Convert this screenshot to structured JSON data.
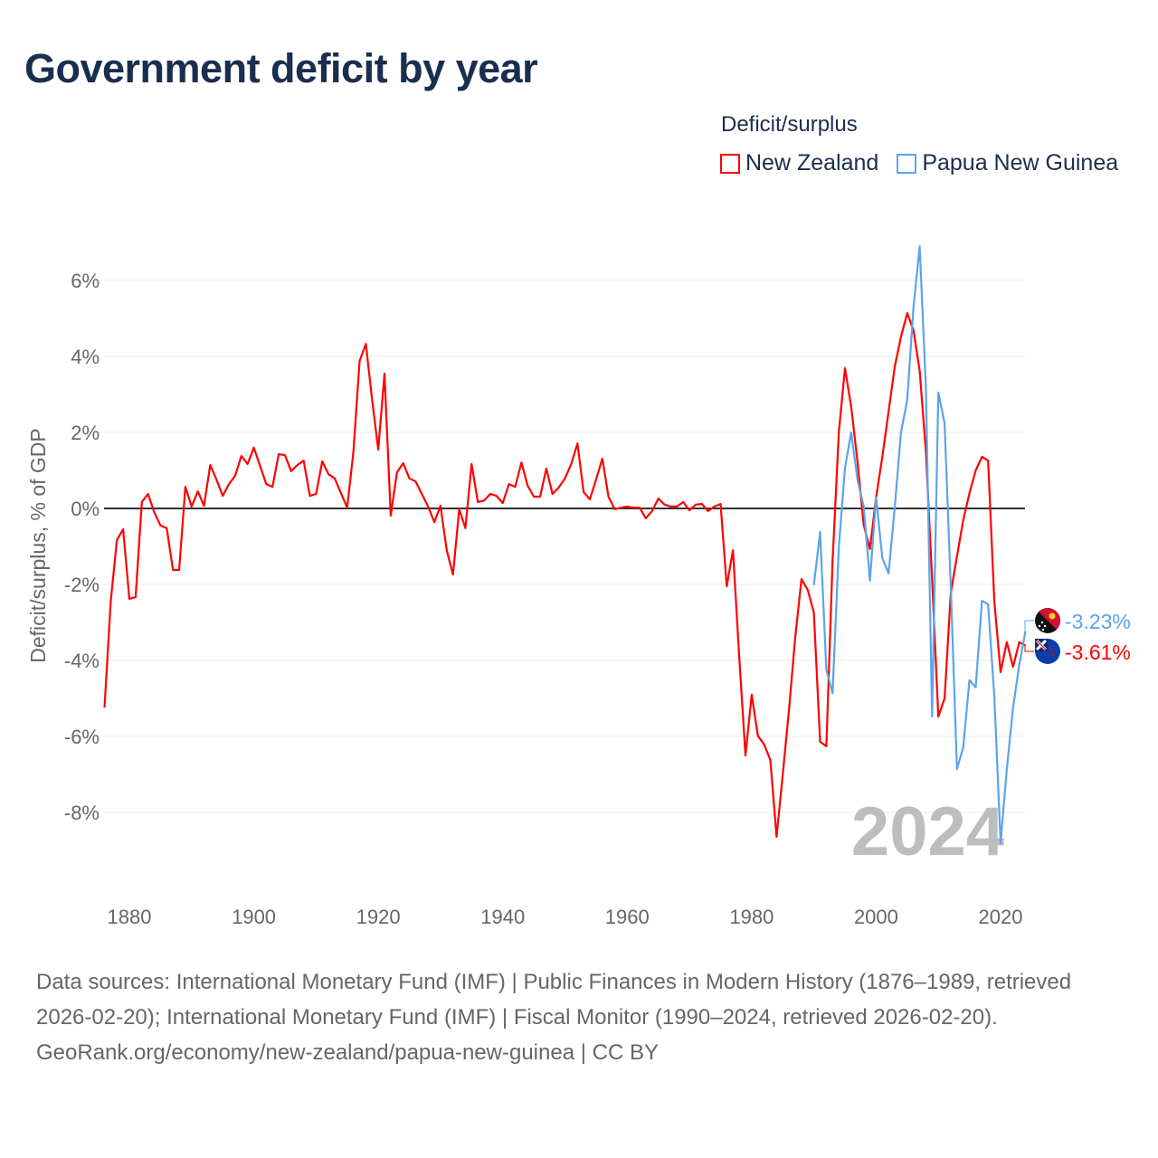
{
  "title": "Government deficit by year",
  "legend": {
    "title": "Deficit/surplus",
    "items": [
      {
        "name": "New Zealand",
        "color": "#ff0000"
      },
      {
        "name": "Papua New Guinea",
        "color": "#5ba4ea"
      }
    ]
  },
  "chart_data": {
    "type": "line",
    "title": "Government deficit by year",
    "xlabel": "",
    "ylabel": "Deficit/surplus, % of GDP",
    "xlim": [
      1876,
      2024
    ],
    "ylim": [
      -9.9,
      7.2
    ],
    "x_ticks": [
      1880,
      1900,
      1920,
      1940,
      1960,
      1980,
      2000,
      2020
    ],
    "y_ticks": [
      -8,
      -6,
      -4,
      -2,
      0,
      2,
      4,
      6
    ],
    "y_tick_labels": [
      "-8%",
      "-6%",
      "-4%",
      "-2%",
      "0%",
      "2%",
      "4%",
      "6%"
    ],
    "grid": true,
    "legend_position": "top-right",
    "year_watermark": "2024",
    "series": [
      {
        "name": "New Zealand",
        "color": "#ff0000",
        "start_year": 1876,
        "end_label": "-3.61%",
        "values": [
          -5.24,
          -2.45,
          -0.83,
          -0.55,
          -2.38,
          -2.33,
          0.17,
          0.38,
          -0.1,
          -0.45,
          -0.52,
          -1.62,
          -1.62,
          0.57,
          0.05,
          0.45,
          0.07,
          1.14,
          0.76,
          0.33,
          0.64,
          0.86,
          1.38,
          1.17,
          1.6,
          1.12,
          0.64,
          0.57,
          1.43,
          1.4,
          0.98,
          1.14,
          1.26,
          0.33,
          0.38,
          1.24,
          0.9,
          0.79,
          0.4,
          0.02,
          1.48,
          3.88,
          4.33,
          2.86,
          1.55,
          3.55,
          -0.19,
          0.95,
          1.19,
          0.79,
          0.71,
          0.38,
          0.05,
          -0.36,
          0.07,
          -1.1,
          -1.74,
          -0.02,
          -0.52,
          1.17,
          0.17,
          0.21,
          0.38,
          0.33,
          0.14,
          0.64,
          0.57,
          1.21,
          0.6,
          0.31,
          0.31,
          1.05,
          0.38,
          0.55,
          0.79,
          1.17,
          1.71,
          0.43,
          0.24,
          0.76,
          1.31,
          0.31,
          -0.02,
          0.02,
          0.05,
          0.02,
          0.02,
          -0.26,
          -0.07,
          0.26,
          0.1,
          0.05,
          0.05,
          0.17,
          -0.05,
          0.1,
          0.12,
          -0.07,
          0.05,
          0.12,
          -2.05,
          -1.1,
          -3.9,
          -6.5,
          -4.9,
          -5.98,
          -6.21,
          -6.62,
          -8.64,
          -6.98,
          -5.31,
          -3.4,
          -1.86,
          -2.14,
          -2.74,
          -6.14,
          -6.26,
          -1.38,
          2.0,
          3.69,
          2.67,
          1.24,
          -0.43,
          -1.07,
          0.29,
          1.36,
          2.55,
          3.74,
          4.52,
          5.14,
          4.69,
          3.62,
          1.48,
          -1.86,
          -5.48,
          -5.0,
          -2.21,
          -1.26,
          -0.31,
          0.4,
          1.0,
          1.36,
          1.26,
          -2.45,
          -4.31,
          -3.52,
          -4.17,
          -3.52,
          -3.61
        ]
      },
      {
        "name": "Papua New Guinea",
        "color": "#5ba4ea",
        "start_year": 1990,
        "end_label": "-3.23%",
        "values": [
          -2.02,
          -0.62,
          -4.24,
          -4.86,
          -1.02,
          1.07,
          2.0,
          0.76,
          0.05,
          -1.9,
          0.29,
          -1.31,
          -1.71,
          0.05,
          2.0,
          2.86,
          5.29,
          6.9,
          3.14,
          -5.48,
          3.05,
          2.24,
          -2.1,
          -6.86,
          -6.29,
          -4.52,
          -4.71,
          -2.43,
          -2.52,
          -4.95,
          -8.81,
          -6.86,
          -5.24,
          -4.12,
          -3.23
        ]
      }
    ]
  },
  "footer": {
    "sources": "Data sources: International Monetary Fund (IMF) | Public Finances in Modern History (1876–1989, retrieved 2026-02-20); International Monetary Fund (IMF) | Fiscal Monitor (1990–2024, retrieved 2026-02-20).",
    "credit": "GeoRank.org/economy/new-zealand/papua-new-guinea | CC BY"
  }
}
